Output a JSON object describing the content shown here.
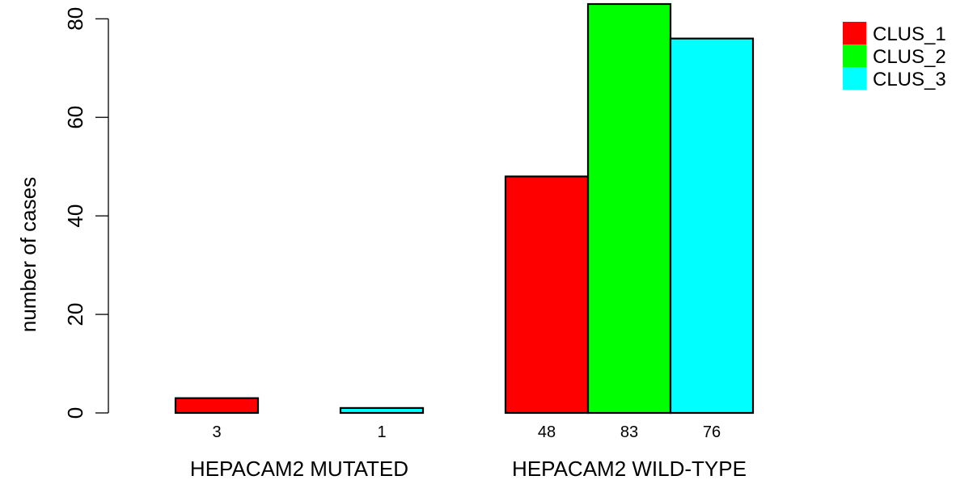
{
  "chart_data": {
    "type": "bar",
    "title": "",
    "xlabel": "",
    "ylabel": "number of cases",
    "ylim": [
      0,
      83
    ],
    "yticks": [
      0,
      20,
      40,
      60,
      80
    ],
    "grid": false,
    "legend_position": "top-right",
    "categories": [
      "HEPACAM2 MUTATED",
      "HEPACAM2 WILD-TYPE"
    ],
    "series": [
      {
        "name": "CLUS_1",
        "color": "#ff0000",
        "values": [
          3,
          48
        ]
      },
      {
        "name": "CLUS_2",
        "color": "#00ff00",
        "values": [
          0,
          83
        ]
      },
      {
        "name": "CLUS_3",
        "color": "#00ffff",
        "values": [
          1,
          76
        ]
      }
    ],
    "bar_labels": [
      [
        "3",
        "",
        "1"
      ],
      [
        "48",
        "83",
        "76"
      ]
    ]
  }
}
